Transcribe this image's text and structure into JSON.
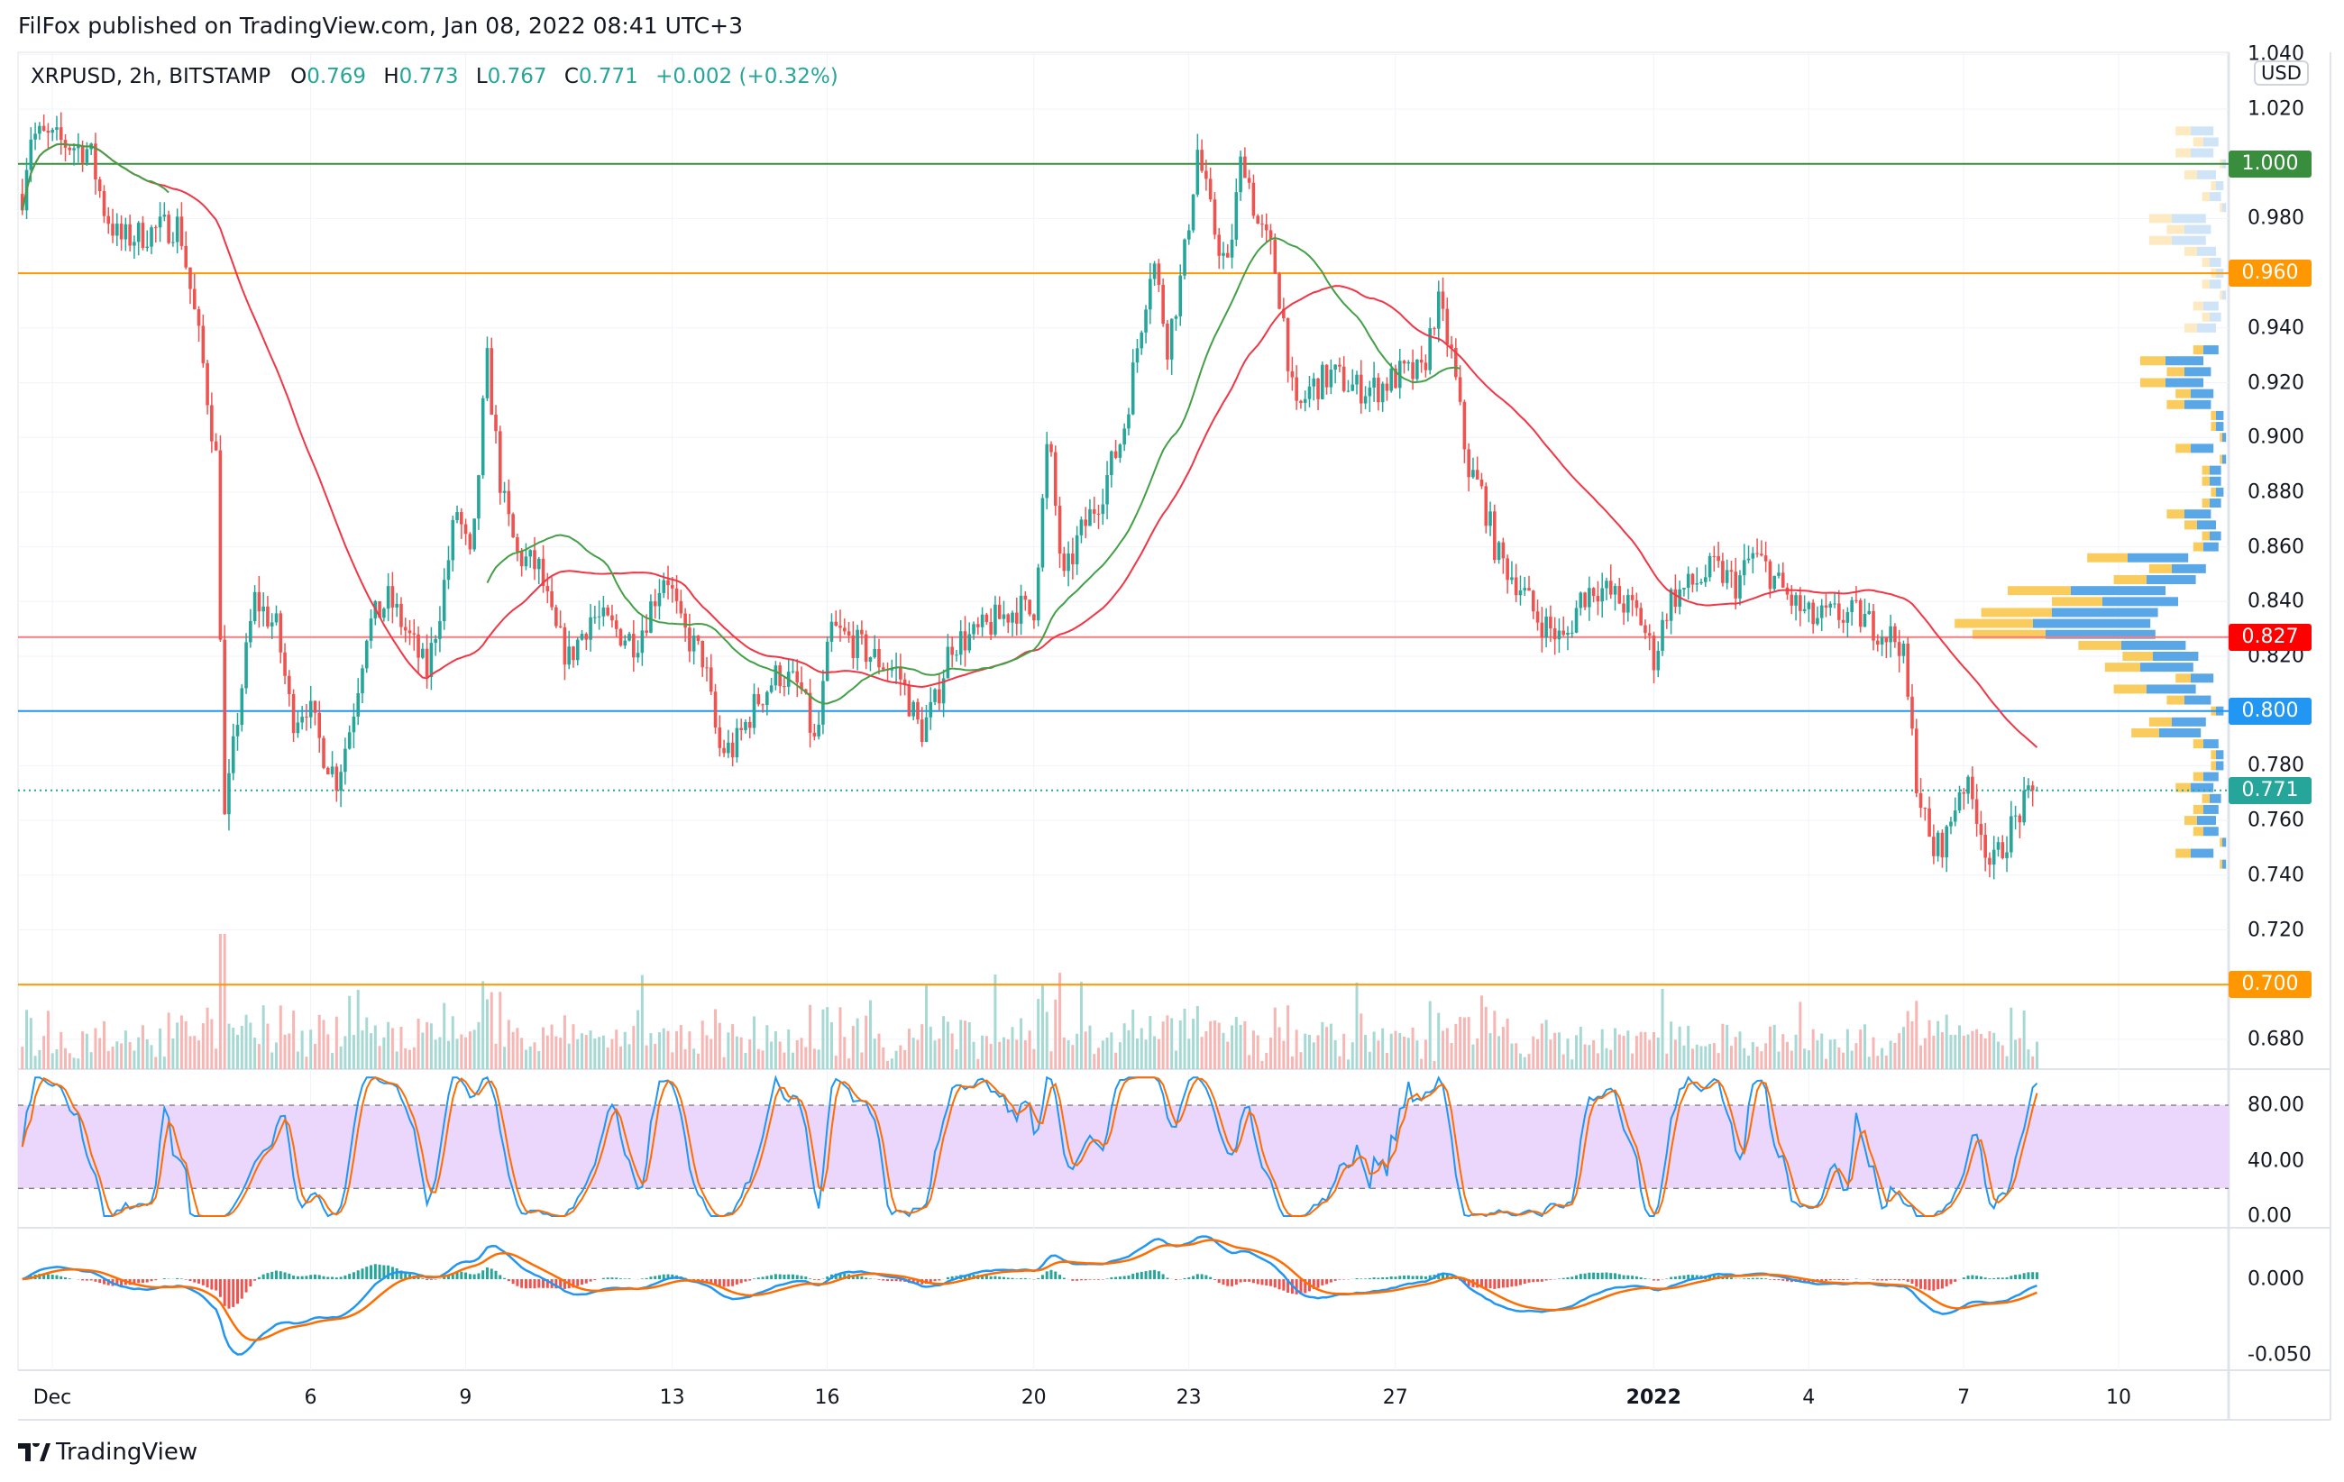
{
  "header": {
    "title": "FilFox published on TradingView.com, Jan 08, 2022 08:41 UTC+3"
  },
  "legend": {
    "symbol": "XRPUSD, 2h, BITSTAMP",
    "o_label": "O",
    "o": "0.769",
    "h_label": "H",
    "h": "0.773",
    "l_label": "L",
    "l": "0.767",
    "c_label": "C",
    "c": "0.771",
    "change": "+0.002 (+0.32%)"
  },
  "currency": "USD",
  "logo": "TradingView",
  "colors": {
    "up": "#26a69a",
    "down": "#ef5350",
    "ma_slow": "#f23645",
    "ma_fast": "#43a047",
    "stoch_k": "#2196f3",
    "stoch_d": "#ff6d00",
    "band": "#ead7fb"
  },
  "chart_data": {
    "type": "candlestick",
    "title": "XRPUSD, 2h, BITSTAMP",
    "x_unit": "days since Dec 1, 2021",
    "price_path": [
      [
        -0.58,
        0.989
      ],
      [
        -0.43,
        1.011
      ],
      [
        0.14,
        1.008
      ],
      [
        0.72,
        1.005
      ],
      [
        1.01,
        0.983
      ],
      [
        1.3,
        0.972
      ],
      [
        1.88,
        0.975
      ],
      [
        2.46,
        0.978
      ],
      [
        2.61,
        0.961
      ],
      [
        2.9,
        0.929
      ],
      [
        3.19,
        0.89
      ],
      [
        3.33,
        0.759
      ],
      [
        3.62,
        0.803
      ],
      [
        3.91,
        0.841
      ],
      [
        4.35,
        0.83
      ],
      [
        4.64,
        0.797
      ],
      [
        4.93,
        0.803
      ],
      [
        5.22,
        0.786
      ],
      [
        5.51,
        0.775
      ],
      [
        5.8,
        0.797
      ],
      [
        6.09,
        0.83
      ],
      [
        6.52,
        0.841
      ],
      [
        6.96,
        0.825
      ],
      [
        7.25,
        0.814
      ],
      [
        7.54,
        0.841
      ],
      [
        7.83,
        0.874
      ],
      [
        8.12,
        0.852
      ],
      [
        8.41,
        0.929
      ],
      [
        8.7,
        0.879
      ],
      [
        8.99,
        0.857
      ],
      [
        9.42,
        0.852
      ],
      [
        9.71,
        0.83
      ],
      [
        10.0,
        0.819
      ],
      [
        10.43,
        0.835
      ],
      [
        10.87,
        0.83
      ],
      [
        11.3,
        0.825
      ],
      [
        11.88,
        0.852
      ],
      [
        12.17,
        0.83
      ],
      [
        12.61,
        0.819
      ],
      [
        12.9,
        0.786
      ],
      [
        13.19,
        0.786
      ],
      [
        13.62,
        0.803
      ],
      [
        14.06,
        0.814
      ],
      [
        14.49,
        0.808
      ],
      [
        14.78,
        0.786
      ],
      [
        15.07,
        0.83
      ],
      [
        15.51,
        0.825
      ],
      [
        15.94,
        0.819
      ],
      [
        16.38,
        0.814
      ],
      [
        16.81,
        0.792
      ],
      [
        17.1,
        0.803
      ],
      [
        17.39,
        0.825
      ],
      [
        17.83,
        0.827
      ],
      [
        18.26,
        0.833
      ],
      [
        18.7,
        0.838
      ],
      [
        18.99,
        0.835
      ],
      [
        19.28,
        0.901
      ],
      [
        19.57,
        0.846
      ],
      [
        19.86,
        0.863
      ],
      [
        20.29,
        0.879
      ],
      [
        20.72,
        0.901
      ],
      [
        21.01,
        0.934
      ],
      [
        21.3,
        0.967
      ],
      [
        21.59,
        0.934
      ],
      [
        21.88,
        0.961
      ],
      [
        22.17,
        1.005
      ],
      [
        22.46,
        0.978
      ],
      [
        22.75,
        0.961
      ],
      [
        23.04,
        1.005
      ],
      [
        23.33,
        0.978
      ],
      [
        23.62,
        0.967
      ],
      [
        23.86,
        0.94
      ],
      [
        24.06,
        0.907
      ],
      [
        24.35,
        0.918
      ],
      [
        24.78,
        0.923
      ],
      [
        25.22,
        0.918
      ],
      [
        25.65,
        0.918
      ],
      [
        26.09,
        0.923
      ],
      [
        26.52,
        0.923
      ],
      [
        26.81,
        0.95
      ],
      [
        27.1,
        0.929
      ],
      [
        27.39,
        0.89
      ],
      [
        27.68,
        0.879
      ],
      [
        27.97,
        0.857
      ],
      [
        28.41,
        0.846
      ],
      [
        28.7,
        0.835
      ],
      [
        28.99,
        0.83
      ],
      [
        29.28,
        0.825
      ],
      [
        29.57,
        0.841
      ],
      [
        29.86,
        0.846
      ],
      [
        30.29,
        0.841
      ],
      [
        30.72,
        0.835
      ],
      [
        31.01,
        0.819
      ],
      [
        31.3,
        0.841
      ],
      [
        31.74,
        0.846
      ],
      [
        32.17,
        0.852
      ],
      [
        32.61,
        0.846
      ],
      [
        32.9,
        0.857
      ],
      [
        33.19,
        0.852
      ],
      [
        33.62,
        0.841
      ],
      [
        34.06,
        0.833
      ],
      [
        34.49,
        0.835
      ],
      [
        34.93,
        0.835
      ],
      [
        35.36,
        0.83
      ],
      [
        35.8,
        0.825
      ],
      [
        36.09,
        0.775
      ],
      [
        36.38,
        0.748
      ],
      [
        36.67,
        0.754
      ],
      [
        36.96,
        0.775
      ],
      [
        37.25,
        0.764
      ],
      [
        37.54,
        0.742
      ],
      [
        37.83,
        0.754
      ],
      [
        38.12,
        0.764
      ],
      [
        38.41,
        0.771
      ]
    ],
    "price_range": [
      0.668,
      1.042
    ],
    "price_ticks": [
      "1.040",
      "1.020",
      "0.980",
      "0.940",
      "0.920",
      "0.900",
      "0.880",
      "0.860",
      "0.840",
      "0.820",
      "0.780",
      "0.760",
      "0.740",
      "0.720",
      "0.680"
    ],
    "levels": [
      {
        "label": "1.000",
        "color": "#388e3c",
        "style": "solid"
      },
      {
        "label": "0.960",
        "color": "#ff9800",
        "style": "solid"
      },
      {
        "label": "0.827",
        "color": "#ff0000",
        "style": "solid"
      },
      {
        "label": "0.800",
        "color": "#2196f3",
        "style": "solid"
      },
      {
        "label": "0.771",
        "color": "#26a69a",
        "style": "dotted"
      },
      {
        "label": "0.700",
        "color": "#ff9800",
        "style": "solid"
      }
    ],
    "stoch": {
      "range": [
        0,
        100
      ],
      "ticks": [
        "80.00",
        "40.00",
        "0.00"
      ],
      "band": [
        20,
        80
      ]
    },
    "macd": {
      "ticks": [
        "0.000",
        "-0.050"
      ]
    },
    "time_ticks": [
      {
        "label": "Dec",
        "day": 0
      },
      {
        "label": "6",
        "day": 5
      },
      {
        "label": "9",
        "day": 8
      },
      {
        "label": "13",
        "day": 12
      },
      {
        "label": "16",
        "day": 15
      },
      {
        "label": "20",
        "day": 19
      },
      {
        "label": "23",
        "day": 22
      },
      {
        "label": "27",
        "day": 26
      },
      {
        "label": "2022",
        "day": 31
      },
      {
        "label": "4",
        "day": 34
      },
      {
        "label": "7",
        "day": 37
      },
      {
        "label": "10",
        "day": 40
      }
    ]
  }
}
